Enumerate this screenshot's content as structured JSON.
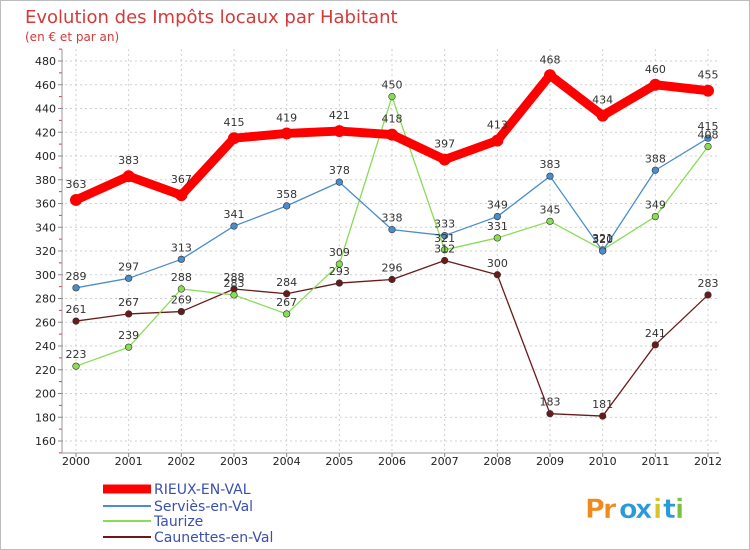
{
  "chart_data": {
    "type": "line",
    "title": "Evolution des Impôts locaux par Habitant",
    "subtitle": "(en € et par an)",
    "xlabel": "",
    "ylabel": "",
    "ylim": [
      160,
      480
    ],
    "yticks": [
      160,
      180,
      200,
      220,
      240,
      260,
      280,
      300,
      320,
      340,
      360,
      380,
      400,
      420,
      440,
      460,
      480
    ],
    "grid": true,
    "categories": [
      "2000",
      "2001",
      "2002",
      "2003",
      "2004",
      "2005",
      "2006",
      "2007",
      "2008",
      "2009",
      "2010",
      "2011",
      "2012"
    ],
    "series": [
      {
        "name": "RIEUX-EN-VAL",
        "color": "#ff0000",
        "values": [
          363,
          383,
          367,
          415,
          419,
          421,
          418,
          397,
          413,
          468,
          434,
          460,
          455
        ]
      },
      {
        "name": "Serviès-en-Val",
        "color": "#4a8dcc",
        "values": [
          289,
          297,
          313,
          341,
          358,
          378,
          338,
          333,
          349,
          383,
          320,
          388,
          415
        ]
      },
      {
        "name": "Taurize",
        "color": "#88dd55",
        "values": [
          223,
          239,
          288,
          283,
          267,
          309,
          450,
          321,
          331,
          345,
          321,
          349,
          408
        ]
      },
      {
        "name": "Caunettes-en-Val",
        "color": "#6b1a1a",
        "values": [
          261,
          267,
          269,
          288,
          284,
          293,
          296,
          312,
          300,
          183,
          181,
          241,
          283
        ]
      }
    ],
    "legend_position": "bottom-left"
  },
  "logo": {
    "text": "Proxiti",
    "letters": [
      "P",
      "r",
      "o",
      "x",
      "i",
      "t",
      "i"
    ]
  }
}
